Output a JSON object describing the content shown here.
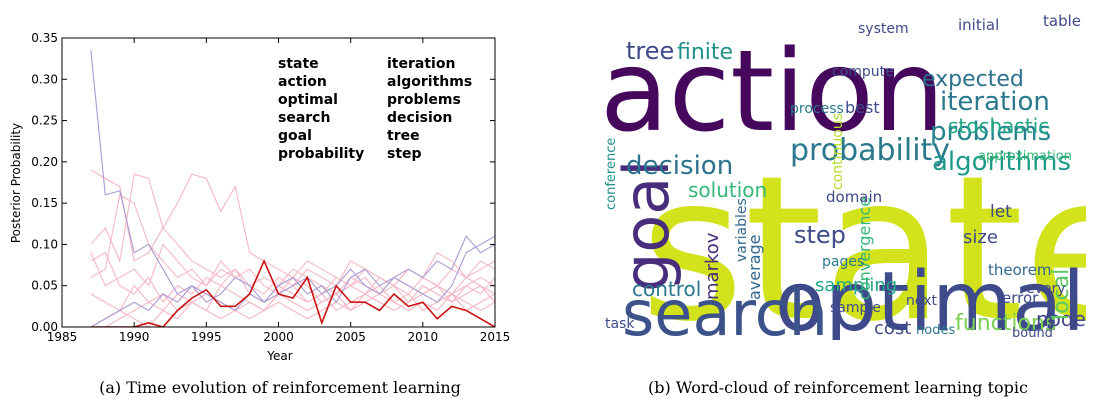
{
  "chart_data": {
    "type": "line",
    "x": [
      1987,
      1988,
      1989,
      1990,
      1991,
      1992,
      1993,
      1994,
      1995,
      1996,
      1997,
      1998,
      1999,
      2000,
      2001,
      2002,
      2003,
      2004,
      2005,
      2006,
      2007,
      2008,
      2009,
      2010,
      2011,
      2012,
      2013,
      2014,
      2015
    ],
    "series": [
      {
        "color": "#f6b7c4",
        "values": [
          0.19,
          0.18,
          0.17,
          0.08,
          0.09,
          0.12,
          0.1,
          0.08,
          0.07,
          0.06,
          0.07,
          0.05,
          0.06,
          0.05,
          0.07,
          0.06,
          0.05,
          0.04,
          0.06,
          0.05,
          0.04,
          0.06,
          0.05,
          0.04,
          0.05,
          0.04,
          0.06,
          0.05,
          0.04
        ]
      },
      {
        "color": "#f6b7c4",
        "values": [
          0.1,
          0.12,
          0.08,
          0.185,
          0.18,
          0.12,
          0.15,
          0.185,
          0.18,
          0.14,
          0.17,
          0.09,
          0.08,
          0.07,
          0.06,
          0.08,
          0.07,
          0.06,
          0.05,
          0.07,
          0.06,
          0.05,
          0.04,
          0.06,
          0.05,
          0.04,
          0.05,
          0.06,
          0.05
        ]
      },
      {
        "color": "#f6b7c4",
        "values": [
          0.09,
          0.05,
          0.06,
          0.07,
          0.05,
          0.1,
          0.08,
          0.06,
          0.05,
          0.07,
          0.06,
          0.05,
          0.04,
          0.06,
          0.05,
          0.07,
          0.06,
          0.05,
          0.08,
          0.07,
          0.06,
          0.05,
          0.07,
          0.06,
          0.09,
          0.08,
          0.06,
          0.07,
          0.08
        ]
      },
      {
        "color": "#f6b7c4",
        "values": [
          0.04,
          0.03,
          0.02,
          0.05,
          0.03,
          0.04,
          0.02,
          0.03,
          0.04,
          0.03,
          0.02,
          0.03,
          0.02,
          0.04,
          0.03,
          0.02,
          0.03,
          0.04,
          0.02,
          0.03,
          0.04,
          0.03,
          0.02,
          0.03,
          0.02,
          0.04,
          0.03,
          0.02,
          0.03
        ]
      },
      {
        "color": "#f6b7c4",
        "values": [
          0.08,
          0.09,
          0.05,
          0.04,
          0.06,
          0.03,
          0.05,
          0.04,
          0.06,
          0.05,
          0.07,
          0.04,
          0.03,
          0.05,
          0.04,
          0.03,
          0.04,
          0.02,
          0.03,
          0.04,
          0.05,
          0.03,
          0.04,
          0.02,
          0.03,
          0.04,
          0.02,
          0.03,
          0.04
        ]
      },
      {
        "color": "#f6b7c4",
        "values": [
          0.0,
          0.01,
          0.02,
          0.01,
          0.0,
          0.02,
          0.01,
          0.03,
          0.02,
          0.01,
          0.02,
          0.01,
          0.02,
          0.03,
          0.02,
          0.01,
          0.02,
          0.03,
          0.02,
          0.04,
          0.03,
          0.02,
          0.03,
          0.05,
          0.04,
          0.03,
          0.05,
          0.04,
          0.06
        ]
      },
      {
        "color": "#f6b7c4",
        "values": [
          0.06,
          0.07,
          0.16,
          0.15,
          0.1,
          0.08,
          0.06,
          0.07,
          0.05,
          0.08,
          0.06,
          0.07,
          0.05,
          0.04,
          0.06,
          0.05,
          0.03,
          0.04,
          0.05,
          0.06,
          0.04,
          0.05,
          0.03,
          0.04,
          0.05,
          0.03,
          0.04,
          0.05,
          0.03
        ]
      },
      {
        "color": "#f6b7c4",
        "values": [
          0.0,
          0.0,
          0.01,
          0.02,
          0.03,
          0.02,
          0.04,
          0.03,
          0.02,
          0.05,
          0.04,
          0.03,
          0.02,
          0.04,
          0.05,
          0.03,
          0.04,
          0.06,
          0.05,
          0.04,
          0.06,
          0.05,
          0.07,
          0.06,
          0.05,
          0.07,
          0.06,
          0.08,
          0.07
        ]
      },
      {
        "color": "#a99ad6",
        "values": [
          0.335,
          0.16,
          0.165,
          0.09,
          0.1,
          0.07,
          0.04,
          0.05,
          0.03,
          0.04,
          0.06,
          0.05,
          0.03,
          0.04,
          0.05,
          0.06,
          0.04,
          0.05,
          0.07,
          0.05,
          0.04,
          0.06,
          0.05,
          0.04,
          0.03,
          0.05,
          0.09,
          0.1,
          0.11
        ]
      },
      {
        "color": "#a99ad6",
        "values": [
          0.0,
          0.01,
          0.02,
          0.03,
          0.02,
          0.04,
          0.03,
          0.05,
          0.04,
          0.03,
          0.02,
          0.04,
          0.03,
          0.05,
          0.06,
          0.04,
          0.05,
          0.03,
          0.06,
          0.07,
          0.05,
          0.06,
          0.07,
          0.06,
          0.08,
          0.07,
          0.11,
          0.09,
          0.1
        ]
      },
      {
        "color": "#cc1111",
        "values": [
          0,
          0,
          0,
          0,
          0.005,
          0,
          0.02,
          0.035,
          0.045,
          0.025,
          0.025,
          0.04,
          0.08,
          0.04,
          0.035,
          0.06,
          0.005,
          0.05,
          0.03,
          0.03,
          0.02,
          0.04,
          0.025,
          0.03,
          0.01,
          0.025,
          0.02,
          0.01,
          0
        ]
      }
    ],
    "xlabel": "Year",
    "ylabel": "Posterior Probability",
    "xlim": [
      1985,
      2015
    ],
    "xticks": [
      1985,
      1990,
      1995,
      2000,
      2005,
      2010,
      2015
    ],
    "ylim": [
      0,
      0.35
    ],
    "yticks": [
      {
        "value": 0,
        "label": "0.00"
      },
      0.05,
      {
        "value": 0.1,
        "label": "0.10"
      },
      0.15,
      {
        "value": 0.2,
        "label": "0.20"
      },
      0.25,
      {
        "value": 0.3,
        "label": "0.30"
      },
      0.35
    ],
    "annotations": [
      [
        "state",
        "action",
        "optimal",
        "search",
        "goal",
        "probability"
      ],
      [
        "iteration",
        "algorithms",
        "problems",
        "decision",
        "tree",
        "step"
      ]
    ]
  },
  "wordcloud": {
    "words": [
      {
        "text": "action",
        "color": "#46085c"
      },
      {
        "text": "state",
        "color": "#d2e21b"
      },
      {
        "text": "optimal",
        "color": "#3e4a89"
      },
      {
        "text": "search",
        "color": "#3b528b"
      },
      {
        "text": "goal",
        "color": "#472d7b"
      },
      {
        "text": "probability",
        "color": "#2a788e"
      },
      {
        "text": "decision",
        "color": "#2c728e"
      },
      {
        "text": "problems",
        "color": "#26828e"
      },
      {
        "text": "algorithms",
        "color": "#1f9a8a"
      },
      {
        "text": "iteration",
        "color": "#2a788e"
      },
      {
        "text": "stochastic",
        "color": "#22a884"
      },
      {
        "text": "expected",
        "color": "#2c728e"
      },
      {
        "text": "tree",
        "color": "#3e4a89"
      },
      {
        "text": "finite",
        "color": "#21918c"
      },
      {
        "text": "control",
        "color": "#2a788e"
      },
      {
        "text": "functions",
        "color": "#7ad151"
      },
      {
        "text": "cost",
        "color": "#3e4a89"
      },
      {
        "text": "node",
        "color": "#414487"
      },
      {
        "text": "local",
        "color": "#5ec962"
      },
      {
        "text": "step",
        "color": "#3e4a89"
      },
      {
        "text": "solution",
        "color": "#35b779"
      },
      {
        "text": "markov",
        "color": "#472d7b"
      },
      {
        "text": "sampling",
        "color": "#22a884"
      },
      {
        "text": "size",
        "color": "#3e4a89"
      },
      {
        "text": "theorem",
        "color": "#31688e"
      },
      {
        "text": "system",
        "color": "#3e4a89"
      },
      {
        "text": "initial",
        "color": "#3e4a89"
      },
      {
        "text": "table",
        "color": "#3e4a89"
      },
      {
        "text": "compute",
        "color": "#3e4a89"
      },
      {
        "text": "process",
        "color": "#2a788e"
      },
      {
        "text": "best",
        "color": "#3e4a89"
      },
      {
        "text": "convergence",
        "color": "#35b779"
      },
      {
        "text": "approximation",
        "color": "#35b779"
      },
      {
        "text": "let",
        "color": "#3e4a89"
      },
      {
        "text": "pages",
        "color": "#2a788e"
      },
      {
        "text": "average",
        "color": "#31688e"
      },
      {
        "text": "continuous",
        "color": "#b5de2b"
      },
      {
        "text": "error",
        "color": "#3e4a89"
      },
      {
        "text": "bound",
        "color": "#3e4a89"
      },
      {
        "text": "domain",
        "color": "#3e4a89"
      },
      {
        "text": "conference",
        "color": "#21918c"
      },
      {
        "text": "variables",
        "color": "#31688e"
      },
      {
        "text": "task",
        "color": "#3e4a89"
      },
      {
        "text": "joint",
        "color": "#3e4a89"
      },
      {
        "text": "sample",
        "color": "#3e4a89"
      },
      {
        "text": "every",
        "color": "#3e4a89"
      },
      {
        "text": "nodes",
        "color": "#2a788e"
      },
      {
        "text": "next",
        "color": "#3e4a89"
      }
    ]
  },
  "captions": [
    "(a) Time evolution of reinforcement learning",
    "(b) Word-cloud of reinforcement learning topic"
  ]
}
